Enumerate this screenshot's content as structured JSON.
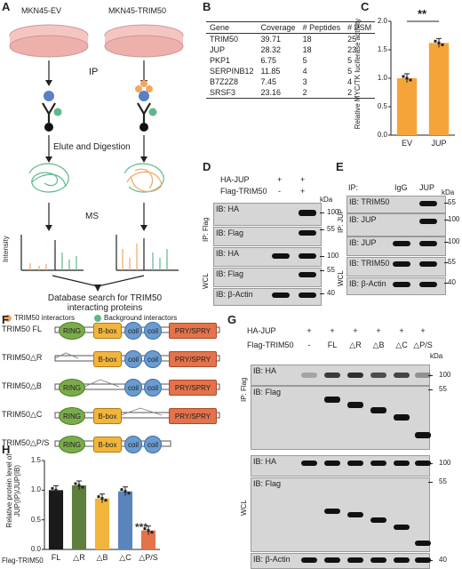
{
  "panelA": {
    "label": "A",
    "dish_left": "MKN45-EV",
    "dish_right": "MKN45-TRIM50",
    "step_ip": "IP",
    "step_elute": "Elute and Digestion",
    "step_ms": "MS",
    "axis_intensity": "Intensity",
    "result_line1": "Database search for TRIM50",
    "result_line2": "interacting proteins",
    "legend_trim50": "TRIM50 interactors",
    "legend_bg": "Background interactors",
    "colors": {
      "trim50": "#f0a860",
      "bg": "#5fb88a",
      "dish": "#f4c6c2"
    }
  },
  "panelB": {
    "label": "B",
    "headers": [
      "Gene",
      "Coverage",
      "# Peptides",
      "# PSM"
    ],
    "rows": [
      [
        "TRIM50",
        "39.71",
        "18",
        "25"
      ],
      [
        "JUP",
        "28.32",
        "18",
        "23"
      ],
      [
        "PKP1",
        "6.75",
        "5",
        "5"
      ],
      [
        "SERPINB12",
        "11.85",
        "4",
        "5"
      ],
      [
        "B7Z2Z8",
        "7.45",
        "3",
        "4"
      ],
      [
        "SRSF3",
        "23.16",
        "2",
        "2"
      ]
    ]
  },
  "panelC": {
    "label": "C",
    "ylabel": "Relative MYC/TK luciferase activity",
    "significance": "**",
    "yticks": [
      "0.0",
      "0.5",
      "1.0",
      "1.5",
      "2.0"
    ],
    "chart_data": {
      "type": "bar",
      "categories": [
        "EV",
        "JUP"
      ],
      "values": [
        1.0,
        1.62
      ],
      "ylim": [
        0,
        2.0
      ],
      "colors": [
        "#f5a43a",
        "#f5a43a"
      ]
    }
  },
  "panelD": {
    "label": "D",
    "row1_label": "HA-JUP",
    "row1_vals": [
      "+",
      "+"
    ],
    "row2_label": "Flag-TRIM50",
    "row2_vals": [
      "-",
      "+"
    ],
    "kda": "kDa",
    "group_ip": "IP: Flag",
    "group_wcl": "WCL",
    "blots": [
      "IB: HA",
      "IB: Flag",
      "IB: HA",
      "IB: Flag",
      "IB: β-Actin"
    ],
    "markers": [
      "100",
      "55",
      "100",
      "55",
      "40"
    ]
  },
  "panelE": {
    "label": "E",
    "ip_label": "IP:",
    "lanes": [
      "IgG",
      "JUP"
    ],
    "kda": "kDa",
    "group_ip": "IP: JUP",
    "group_wcl": "WCL",
    "blots": [
      "IB: TRIM50",
      "IB: JUP",
      "IB: JUP",
      "IB: TRIM50",
      "IB: β-Actin"
    ],
    "markers": [
      "55",
      "100",
      "100",
      "55",
      "40"
    ]
  },
  "panelF": {
    "label": "F",
    "constructs": [
      "TRIM50 FL",
      "TRIM50△R",
      "TRIM50△B",
      "TRIM50△C",
      "TRIM50△P/S"
    ],
    "dom_ring": "RING",
    "dom_bbox": "B-box",
    "dom_coil": "coil",
    "dom_pry": "PRY/SPRY"
  },
  "panelG": {
    "label": "G",
    "row1_label": "HA-JUP",
    "row1_vals": [
      "+",
      "+",
      "+",
      "+",
      "+",
      "+"
    ],
    "row2_label": "Flag-TRIM50",
    "row2_vals": [
      "-",
      "FL",
      "△R",
      "△B",
      "△C",
      "△P/S"
    ],
    "kda": "kDa",
    "group_ip": "IP: Flag",
    "group_wcl": "WCL",
    "blots": [
      "IB: HA",
      "IB: Flag",
      "IB: HA",
      "IB: Flag",
      "IB: β-Actin"
    ],
    "markers": [
      "100",
      "55",
      "100",
      "55",
      "40"
    ]
  },
  "panelH": {
    "label": "H",
    "ylabel": "Relative protein level of JUP(IP)/JUP(IB)",
    "significance": "***",
    "xlabel_prefix": "Flag-TRIM50",
    "yticks": [
      "0.0",
      "0.5",
      "1.0",
      "1.5"
    ],
    "chart_data": {
      "type": "bar",
      "categories": [
        "FL",
        "△R",
        "△B",
        "△C",
        "△P/S"
      ],
      "values": [
        1.0,
        1.08,
        0.86,
        0.98,
        0.32
      ],
      "ylim": [
        0,
        1.5
      ],
      "colors": [
        "#1a1a1a",
        "#5e7f3b",
        "#f2b53b",
        "#5b84bd",
        "#e4724a"
      ]
    }
  }
}
